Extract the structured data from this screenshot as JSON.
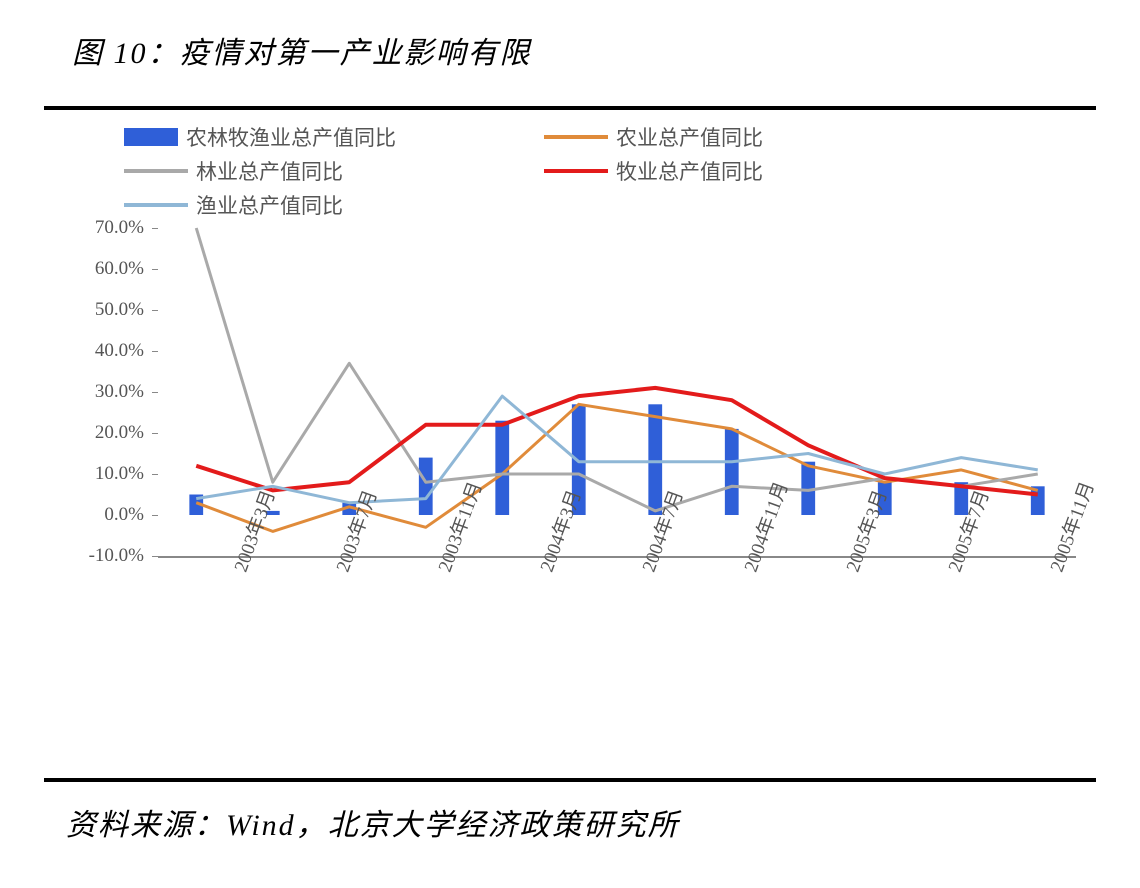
{
  "title": "图 10：疫情对第一产业影响有限",
  "source": "资料来源：Wind，北京大学经济政策研究所",
  "chart": {
    "type": "bar+line",
    "background_color": "#ffffff",
    "grid_color": "#ffffff",
    "axis_color": "#888888",
    "label_color": "#555555",
    "label_fontsize": 19,
    "title_fontsize": 30,
    "ylim": [
      -10,
      70
    ],
    "ytick_step": 10,
    "y_ticks": [
      "-10.0%",
      "0.0%",
      "10.0%",
      "20.0%",
      "30.0%",
      "40.0%",
      "50.0%",
      "60.0%",
      "70.0%"
    ],
    "x_labels_visible": [
      "2003年3月",
      "2003年7月",
      "2003年11月",
      "2004年3月",
      "2004年7月",
      "2004年11月",
      "2005年3月",
      "2005年7月",
      "2005年11月"
    ],
    "n_points": 12,
    "bar_width": 0.18,
    "legend": {
      "items": [
        {
          "kind": "bar",
          "label": "农林牧渔业总产值同比",
          "color": "#2f5fd8"
        },
        {
          "kind": "line",
          "label": "农业总产值同比",
          "color": "#e08b3a"
        },
        {
          "kind": "line",
          "label": "林业总产值同比",
          "color": "#a9a9a9"
        },
        {
          "kind": "line",
          "label": "牧业总产值同比",
          "color": "#e31b1b"
        },
        {
          "kind": "line",
          "label": "渔业总产值同比",
          "color": "#8fb7d6"
        }
      ],
      "line_width": 4
    },
    "series": {
      "bars": {
        "color": "#2f5fd8",
        "values": [
          5,
          1,
          3,
          14,
          23,
          27,
          27,
          21,
          13,
          8,
          8,
          7
        ]
      },
      "lines": [
        {
          "name": "agri",
          "color": "#e08b3a",
          "width": 3,
          "values": [
            3,
            -4,
            2,
            -3,
            10,
            27,
            24,
            21,
            12,
            8,
            11,
            6
          ]
        },
        {
          "name": "forest",
          "color": "#a9a9a9",
          "width": 3,
          "values": [
            70,
            8,
            37,
            8,
            10,
            10,
            1,
            7,
            6,
            9,
            7,
            10
          ]
        },
        {
          "name": "livestock",
          "color": "#e31b1b",
          "width": 4,
          "values": [
            12,
            6,
            8,
            22,
            22,
            29,
            31,
            28,
            17,
            9,
            7,
            5
          ]
        },
        {
          "name": "fish",
          "color": "#8fb7d6",
          "width": 3,
          "values": [
            4,
            7,
            3,
            4,
            29,
            13,
            13,
            13,
            15,
            10,
            14,
            11
          ]
        }
      ]
    }
  }
}
